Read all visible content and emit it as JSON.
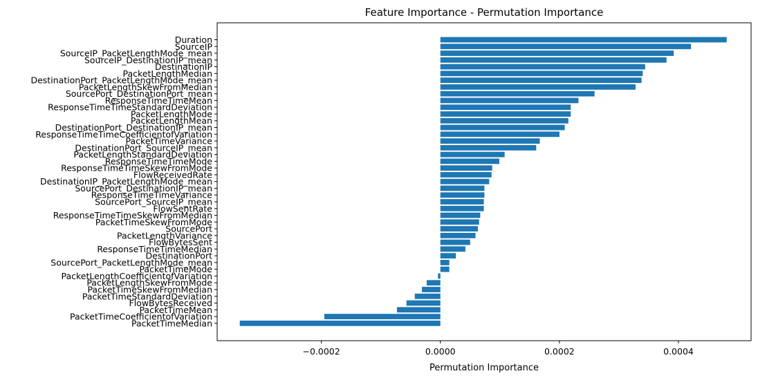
{
  "chart_data": {
    "type": "bar",
    "orientation": "horizontal",
    "title": "Feature Importance - Permutation Importance",
    "xlabel": "Permutation Importance",
    "ylabel": "",
    "xlim": [
      -0.000375,
      0.000522
    ],
    "xticks": [
      -0.0002,
      0.0,
      0.0002,
      0.0004
    ],
    "xtick_labels": [
      "−0.0002",
      "0.0000",
      "0.0002",
      "0.0004"
    ],
    "grid": false,
    "bar_color": "#1f77b4",
    "categories": [
      "Duration",
      "SourceIP",
      "SourceIP_PacketLengthMode_mean",
      "SourceIP_DestinationIP_mean",
      "DestinationIP",
      "PacketLengthMedian",
      "DestinationPort_PacketLengthMode_mean",
      "PacketLengthSkewFromMedian",
      "SourcePort_DestinationPort_mean",
      "ResponseTimeTimeMean",
      "ResponseTimeTimeStandardDeviation",
      "PacketLengthMode",
      "PacketLengthMean",
      "DestinationPort_DestinationIP_mean",
      "ResponseTimeTimeCoefficientofVariation",
      "PacketTimeVariance",
      "DestinationPort_SourceIP_mean",
      "PacketLengthStandardDeviation",
      "ResponseTimeTimeMode",
      "ResponseTimeTimeSkewFromMode",
      "FlowReceivedRate",
      "DestinationIP_PacketLengthMode_mean",
      "SourcePort_DestinationIP_mean",
      "ResponseTimeTimeVariance",
      "SourcePort_SourceIP_mean",
      "FlowSentRate",
      "ResponseTimeTimeSkewFromMedian",
      "PacketTimeSkewFromMode",
      "SourcePort",
      "PacketLengthVariance",
      "FlowBytesSent",
      "ResponseTimeTimeMedian",
      "DestinationPort",
      "SourcePort_PacketLengthMode_mean",
      "PacketTimeMode",
      "PacketLengthCoefficientofVariation",
      "PacketLengthSkewFromMode",
      "PacketTimeSkewFromMedian",
      "PacketTimeStandardDeviation",
      "FlowBytesReceived",
      "PacketTimeMean",
      "PacketTimeCoefficientofVariation",
      "PacketTimeMedian"
    ],
    "values": [
      0.000481,
      0.000421,
      0.000392,
      0.00038,
      0.000344,
      0.00034,
      0.000338,
      0.000328,
      0.000259,
      0.000232,
      0.000219,
      0.000219,
      0.000215,
      0.000209,
      0.0002,
      0.000167,
      0.000161,
      0.000108,
      9.9e-05,
      8.7e-05,
      8.6e-05,
      8.2e-05,
      7.4e-05,
      7.4e-05,
      7.3e-05,
      7.3e-05,
      6.7e-05,
      6.5e-05,
      6.3e-05,
      5.9e-05,
      5e-05,
      4.2e-05,
      2.6e-05,
      1.5e-05,
      1.5e-05,
      -4e-06,
      -2.3e-05,
      -3.1e-05,
      -4.3e-05,
      -5.7e-05,
      -7.3e-05,
      -0.000195,
      -0.000337
    ]
  }
}
